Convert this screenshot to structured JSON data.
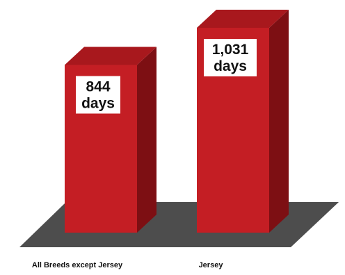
{
  "chart_data": {
    "type": "bar",
    "title": "",
    "xlabel": "",
    "ylabel": "",
    "categories": [
      "All Breeds except Jersey",
      "Jersey"
    ],
    "values": [
      844,
      1031
    ],
    "value_labels": [
      [
        "844",
        "days"
      ],
      [
        "1,031",
        "days"
      ]
    ],
    "style": "3d",
    "grid": false,
    "colors": {
      "bar_front": "#c41e24",
      "bar_side": "#7d0f13",
      "bar_top": "#a8181d",
      "floor": "#4d4d4d",
      "label_box": "#ffffff"
    }
  }
}
